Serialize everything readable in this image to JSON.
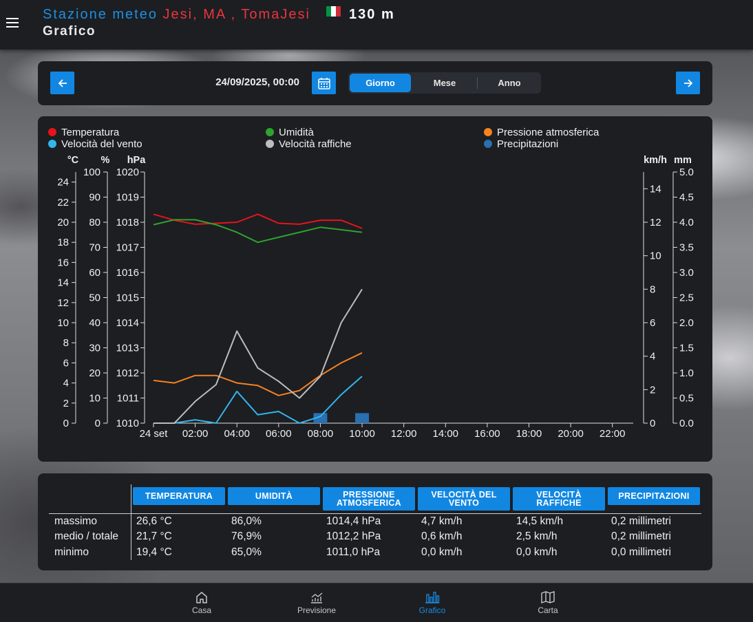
{
  "header": {
    "station_prefix": "Stazione meteo",
    "location": "Jesi, MA , TomaJesi",
    "altitude": "130 m",
    "page_title": "Grafico",
    "flag_colors": [
      "#009246",
      "#ffffff",
      "#ce2b37"
    ]
  },
  "nav": {
    "prev_icon": "arrow-left-icon",
    "next_icon": "arrow-right-icon",
    "calendar_icon": "calendar-icon",
    "date": "24/09/2025, 00:00",
    "periods": [
      "Giorno",
      "Mese",
      "Anno"
    ],
    "active_period": "Giorno"
  },
  "legend": [
    {
      "label": "Temperatura",
      "color": "#e8131b"
    },
    {
      "label": "Velocità del vento",
      "color": "#33b5ee"
    },
    {
      "label": "Umidità",
      "color": "#2ea32e"
    },
    {
      "label": "Velocità raffiche",
      "color": "#bdbdbd"
    },
    {
      "label": "Pressione atmosferica",
      "color": "#f5821f"
    },
    {
      "label": "Precipitazioni",
      "color": "#2a6fb0"
    }
  ],
  "chart_data": {
    "type": "line",
    "x_unit": "hour of day",
    "x_ticks": [
      "24 set",
      "02:00",
      "04:00",
      "06:00",
      "08:00",
      "10:00",
      "12:00",
      "14:00",
      "16:00",
      "18:00",
      "20:00",
      "22:00"
    ],
    "axes": {
      "temperature": {
        "unit": "°C",
        "range": [
          0,
          25
        ],
        "ticks": [
          0,
          2,
          4,
          6,
          8,
          10,
          12,
          14,
          16,
          18,
          20,
          22,
          24
        ]
      },
      "humidity": {
        "unit": "%",
        "range": [
          0,
          100
        ],
        "ticks": [
          0,
          10,
          20,
          30,
          40,
          50,
          60,
          70,
          80,
          90,
          100
        ]
      },
      "pressure": {
        "unit": "hPa",
        "range": [
          1010,
          1020
        ],
        "ticks": [
          1010,
          1011,
          1012,
          1013,
          1014,
          1015,
          1016,
          1017,
          1018,
          1019,
          1020
        ]
      },
      "wind": {
        "unit": "km/h",
        "range": [
          0,
          15
        ],
        "ticks": [
          0,
          2,
          4,
          6,
          8,
          10,
          12,
          14
        ]
      },
      "rain": {
        "unit": "mm",
        "range": [
          0,
          5
        ],
        "ticks": [
          "0.0",
          "0.5",
          "1.0",
          "1.5",
          "2.0",
          "2.5",
          "3.0",
          "3.5",
          "4.0",
          "4.5",
          "5.0"
        ]
      }
    },
    "series": [
      {
        "name": "Temperatura",
        "axis": "temperature",
        "color": "#e8131b",
        "x": [
          0,
          1,
          2,
          3,
          4,
          5,
          6,
          7,
          8,
          9,
          10
        ],
        "y": [
          20.8,
          20.2,
          19.8,
          19.9,
          20.0,
          20.8,
          19.9,
          19.8,
          20.2,
          20.2,
          19.4
        ]
      },
      {
        "name": "Umidità",
        "axis": "humidity",
        "color": "#2ea32e",
        "x": [
          0,
          1,
          2,
          3,
          4,
          5,
          6,
          7,
          8,
          9,
          10
        ],
        "y": [
          79,
          81,
          81,
          79,
          76,
          72,
          74,
          76,
          78,
          77,
          76
        ]
      },
      {
        "name": "Pressione atmosferica",
        "axis": "pressure",
        "color": "#f5821f",
        "x": [
          0,
          1,
          2,
          3,
          4,
          5,
          6,
          7,
          8,
          9,
          10
        ],
        "y": [
          1011.7,
          1011.6,
          1011.9,
          1011.9,
          1011.6,
          1011.5,
          1011.1,
          1011.3,
          1011.9,
          1012.4,
          1012.8
        ]
      },
      {
        "name": "Velocità del vento",
        "axis": "wind",
        "color": "#33b5ee",
        "x": [
          0,
          1,
          2,
          3,
          4,
          5,
          6,
          7,
          8,
          9,
          10
        ],
        "y": [
          0.0,
          0.0,
          0.2,
          0.0,
          1.9,
          0.5,
          0.7,
          0.0,
          0.4,
          1.7,
          2.8
        ]
      },
      {
        "name": "Velocità raffiche",
        "axis": "wind",
        "color": "#bdbdbd",
        "x": [
          0,
          1,
          2,
          3,
          4,
          5,
          6,
          7,
          8,
          9,
          10
        ],
        "y": [
          0.0,
          0.0,
          1.3,
          2.3,
          5.5,
          3.3,
          2.5,
          1.5,
          2.8,
          6.0,
          8.0
        ]
      },
      {
        "name": "Precipitazioni",
        "axis": "rain",
        "color": "#2a6fb0",
        "type": "bar",
        "x": [
          8,
          10
        ],
        "y": [
          0.2,
          0.2
        ]
      }
    ]
  },
  "stats": {
    "headers": [
      "TEMPERATURA",
      "UMIDITÀ",
      "PRESSIONE ATMOSFERICA",
      "VELOCITÀ DEL VENTO",
      "VELOCITÀ RAFFICHE",
      "PRECIPITAZIONI"
    ],
    "rows": [
      {
        "label": "massimo",
        "values": [
          "26,6 °C",
          "86,0%",
          "1014,4 hPa",
          "4,7 km/h",
          "14,5 km/h",
          "0,2 millimetri"
        ]
      },
      {
        "label": "medio / totale",
        "values": [
          "21,7 °C",
          "76,9%",
          "1012,2 hPa",
          "0,6 km/h",
          "2,5 km/h",
          "0,2 millimetri"
        ]
      },
      {
        "label": "minimo",
        "values": [
          "19,4 °C",
          "65,0%",
          "1011,0 hPa",
          "0,0 km/h",
          "0,0 km/h",
          "0,0 millimetri"
        ]
      }
    ]
  },
  "bottom_nav": [
    {
      "label": "Casa",
      "icon": "home-icon"
    },
    {
      "label": "Previsione",
      "icon": "forecast-chart-icon"
    },
    {
      "label": "Grafico",
      "icon": "bar-chart-icon",
      "active": true
    },
    {
      "label": "Carta",
      "icon": "map-icon"
    }
  ]
}
